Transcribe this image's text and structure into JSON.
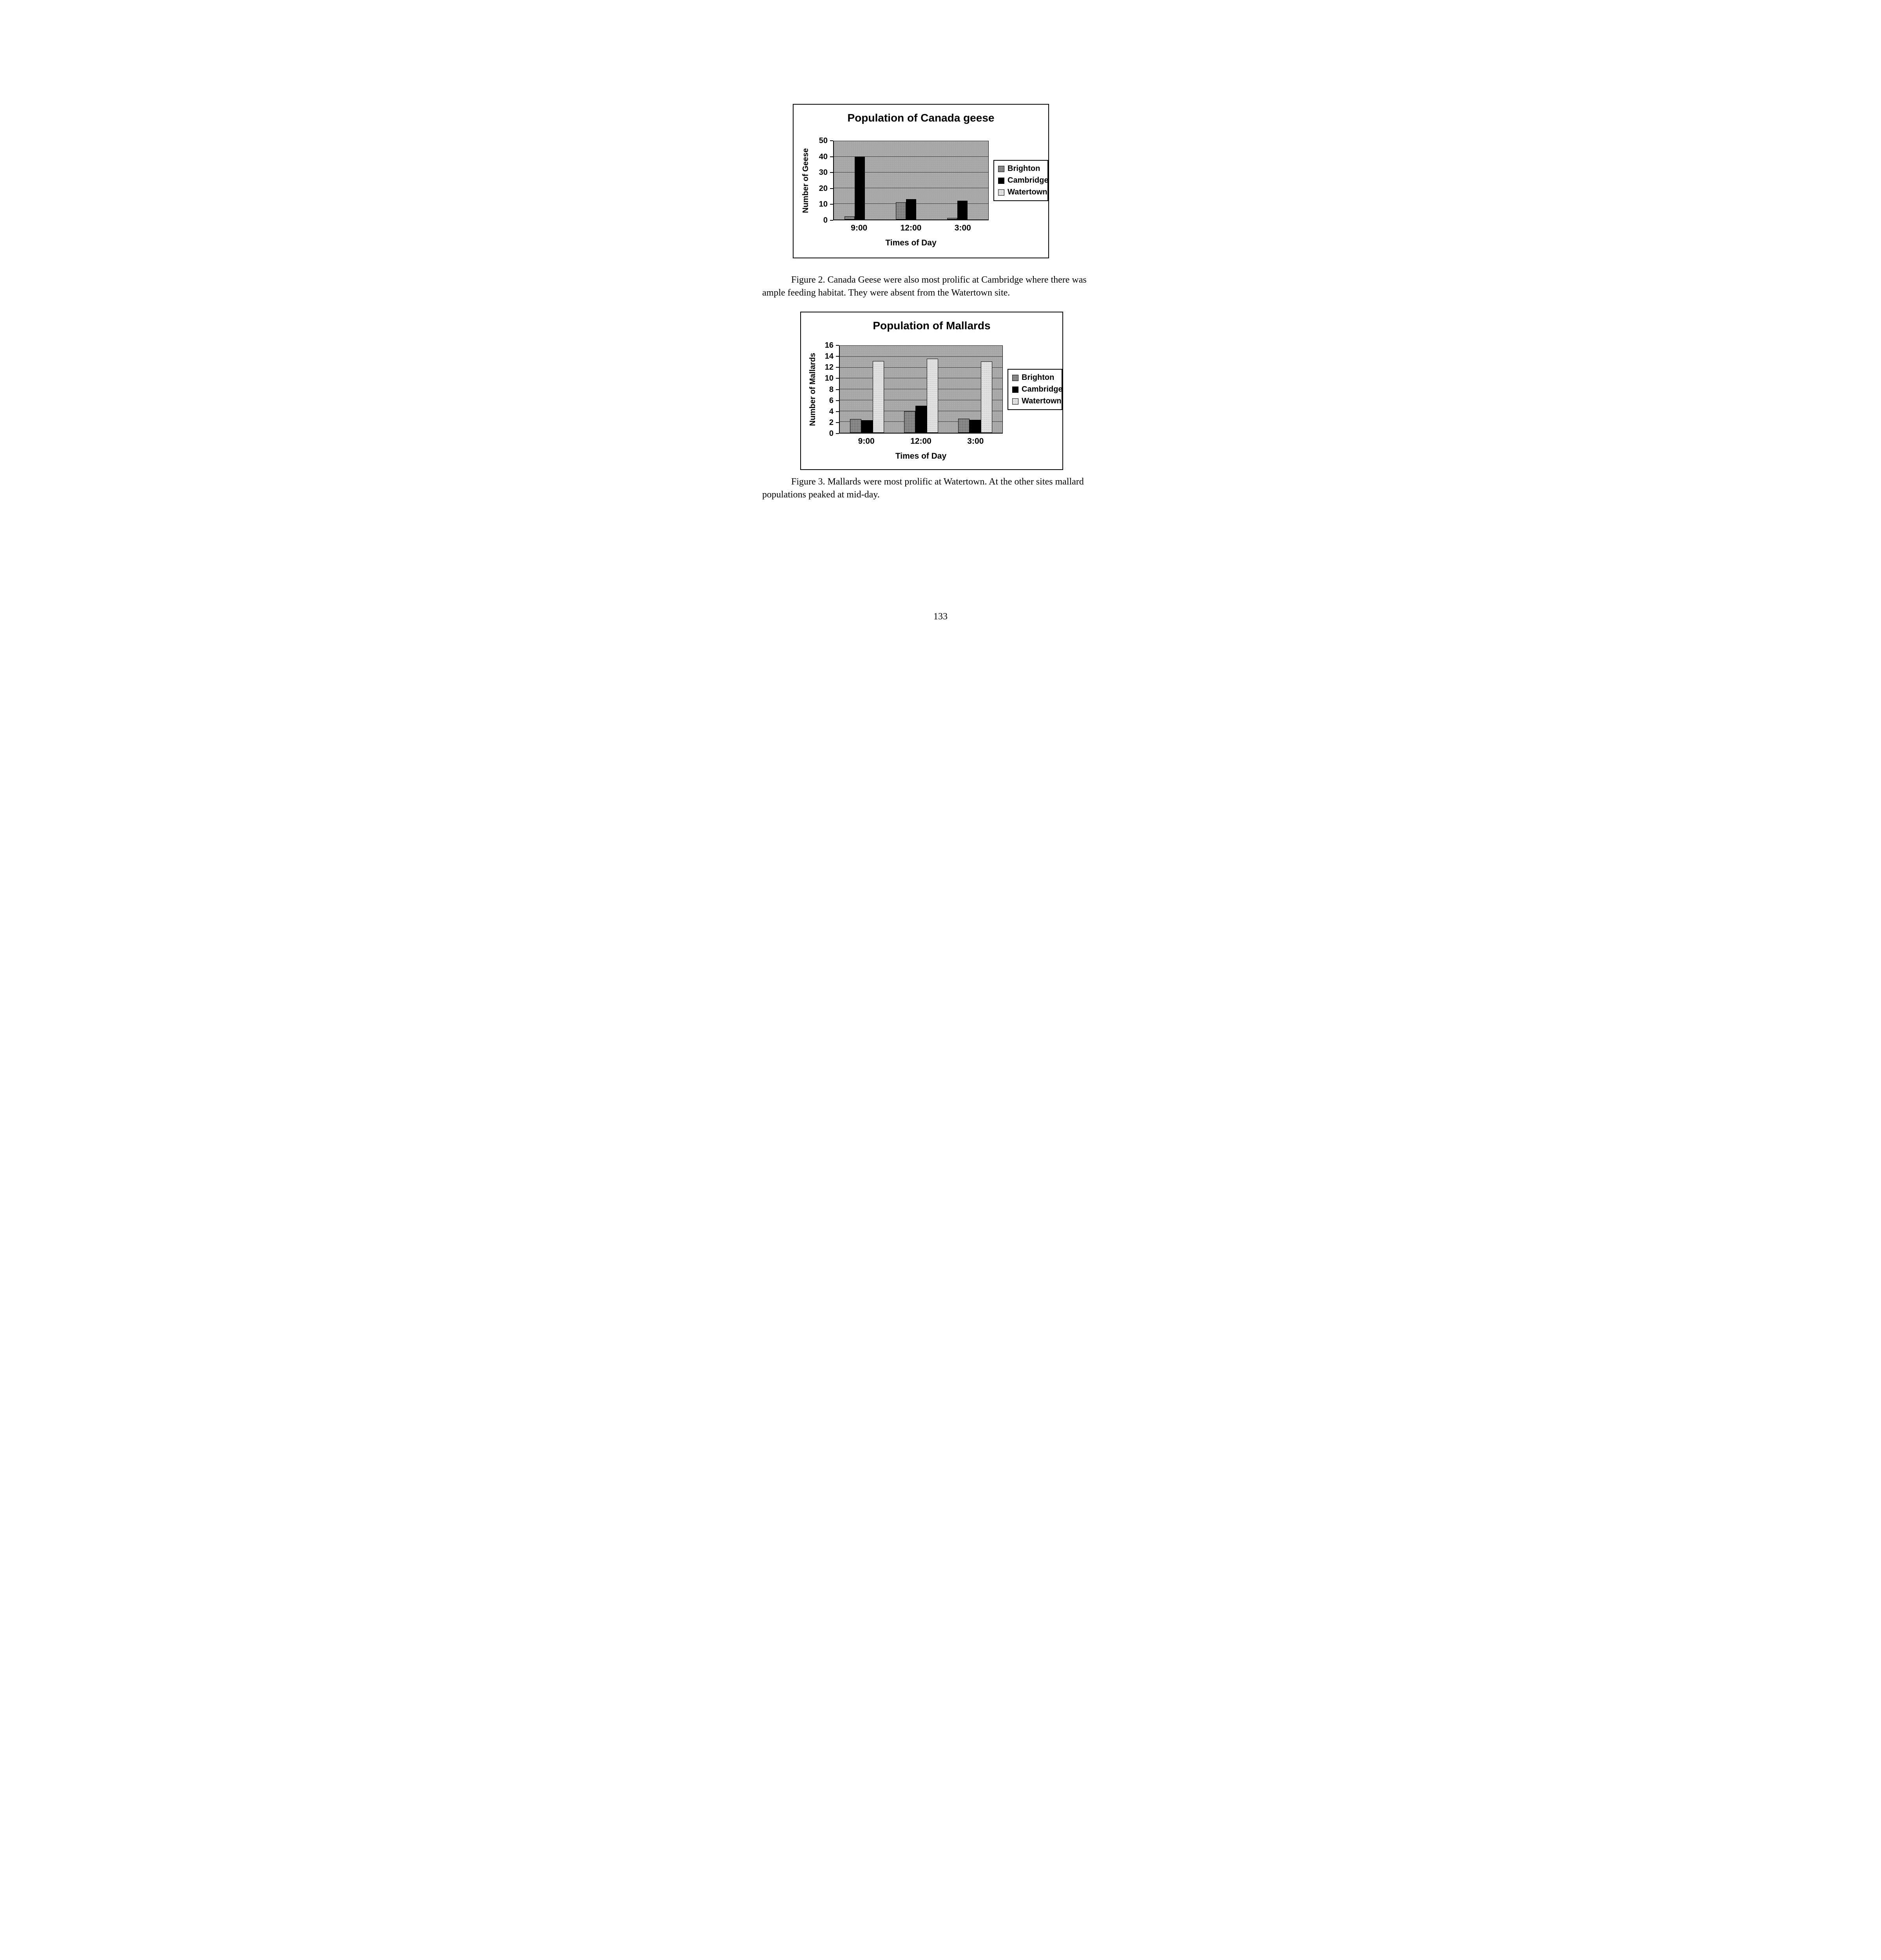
{
  "page": {
    "number": "133"
  },
  "figures": [
    {
      "caption": "Figure 2.  Canada Geese were also most prolific at Cambridge where there was ample feeding habitat.  They were absent from the Watertown site."
    },
    {
      "caption": "Figure 3.  Mallards were most prolific at Watertown.  At the other sites mallard populations peaked at mid-day."
    }
  ],
  "chart_data": [
    {
      "type": "bar",
      "title": "Population of Canada geese",
      "xlabel": "Times of Day",
      "ylabel": "Number of Geese",
      "categories": [
        "9:00",
        "12:00",
        "3:00"
      ],
      "series": [
        {
          "name": "Brighton",
          "values": [
            2,
            11,
            1
          ]
        },
        {
          "name": "Cambridge",
          "values": [
            40,
            13,
            12
          ]
        },
        {
          "name": "Watertown",
          "values": [
            0,
            0,
            0
          ]
        }
      ],
      "ylim": [
        0,
        50
      ],
      "ystep": 10,
      "grid": true,
      "legend_position": "right"
    },
    {
      "type": "bar",
      "title": "Population of Mallards",
      "xlabel": "Times of Day",
      "ylabel": "Number of Mallards",
      "categories": [
        "9:00",
        "12:00",
        "3:00"
      ],
      "series": [
        {
          "name": "Brighton",
          "values": [
            2.5,
            4,
            2.6
          ]
        },
        {
          "name": "Cambridge",
          "values": [
            2.3,
            5,
            2.4
          ]
        },
        {
          "name": "Watertown",
          "values": [
            13.2,
            13.6,
            13.1
          ]
        }
      ],
      "ylim": [
        0,
        16
      ],
      "ystep": 2,
      "grid": true,
      "legend_position": "right"
    }
  ],
  "colors": {
    "brighton": "#8f8f8f",
    "cambridge": "#000000",
    "watertown": "#e2e2e2",
    "plot_background": "#a7a7a7"
  }
}
